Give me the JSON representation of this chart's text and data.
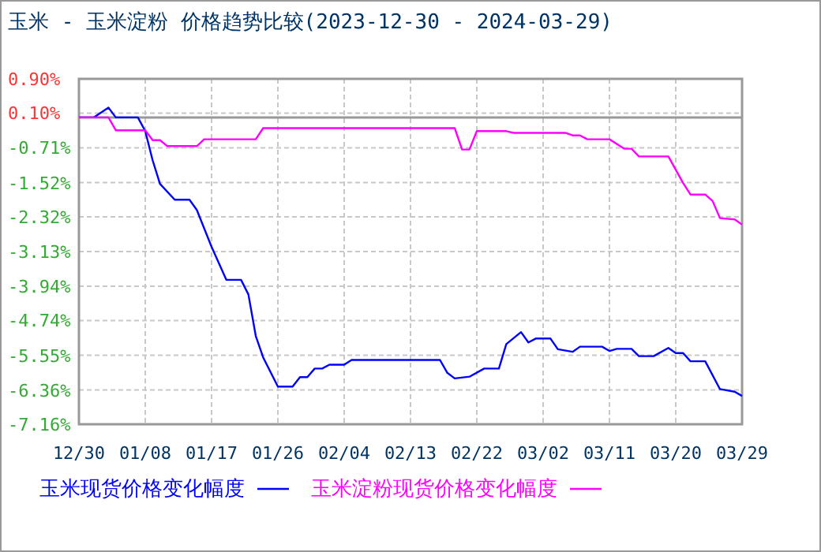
{
  "chart_data": {
    "type": "line",
    "title": "玉米 - 玉米淀粉 价格趋势比较(2023-12-30 - 2024-03-29)",
    "xlim": [
      "2023-12-30",
      "2024-03-29"
    ],
    "xticks": [
      {
        "value": "2023-12-30",
        "label": "12/30"
      },
      {
        "value": "2024-01-08",
        "label": "01/08"
      },
      {
        "value": "2024-01-17",
        "label": "01/17"
      },
      {
        "value": "2024-01-26",
        "label": "01/26"
      },
      {
        "value": "2024-02-04",
        "label": "02/04"
      },
      {
        "value": "2024-02-13",
        "label": "02/13"
      },
      {
        "value": "2024-02-22",
        "label": "02/22"
      },
      {
        "value": "2024-03-02",
        "label": "03/02"
      },
      {
        "value": "2024-03-11",
        "label": "03/11"
      },
      {
        "value": "2024-03-20",
        "label": "03/20"
      },
      {
        "value": "2024-03-29",
        "label": "03/29"
      }
    ],
    "ylim": [
      -7.16,
      0.9
    ],
    "yticks": [
      {
        "value": 0.9,
        "label": "0.90%"
      },
      {
        "value": 0.1,
        "label": "0.10%"
      },
      {
        "value": -0.71,
        "label": "-0.71%"
      },
      {
        "value": -1.52,
        "label": "-1.52%"
      },
      {
        "value": -2.32,
        "label": "-2.32%"
      },
      {
        "value": -3.13,
        "label": "-3.13%"
      },
      {
        "value": -3.94,
        "label": "-3.94%"
      },
      {
        "value": -4.74,
        "label": "-4.74%"
      },
      {
        "value": -5.55,
        "label": "-5.55%"
      },
      {
        "value": -6.36,
        "label": "-6.36%"
      },
      {
        "value": -7.16,
        "label": "-7.16%"
      }
    ],
    "grid": true,
    "legend": "bottom",
    "line_style": "solid",
    "marker": "none",
    "ref_lines": [
      {
        "axis": "y",
        "value": 0,
        "color": "#999999",
        "line_style": "solid"
      }
    ],
    "series": [
      {
        "name": "玉米现货价格变化幅度",
        "color": "#0000ff",
        "x": [
          "2023-12-30",
          "2024-01-01",
          "2024-01-03",
          "2024-01-04",
          "2024-01-07",
          "2024-01-08",
          "2024-01-09",
          "2024-01-10",
          "2024-01-12",
          "2024-01-14",
          "2024-01-15",
          "2024-01-17",
          "2024-01-19",
          "2024-01-21",
          "2024-01-22",
          "2024-01-23",
          "2024-01-24",
          "2024-01-26",
          "2024-01-28",
          "2024-01-29",
          "2024-01-30",
          "2024-01-31",
          "2024-02-01",
          "2024-02-02",
          "2024-02-04",
          "2024-02-05",
          "2024-02-17",
          "2024-02-18",
          "2024-02-19",
          "2024-02-21",
          "2024-02-23",
          "2024-02-25",
          "2024-02-26",
          "2024-02-28",
          "2024-02-29",
          "2024-03-01",
          "2024-03-03",
          "2024-03-04",
          "2024-03-06",
          "2024-03-07",
          "2024-03-10",
          "2024-03-11",
          "2024-03-12",
          "2024-03-14",
          "2024-03-15",
          "2024-03-17",
          "2024-03-19",
          "2024-03-20",
          "2024-03-21",
          "2024-03-22",
          "2024-03-24",
          "2024-03-26",
          "2024-03-28",
          "2024-03-29"
        ],
        "values": [
          0,
          0,
          0.23,
          0,
          0,
          -0.32,
          -1.0,
          -1.55,
          -1.92,
          -1.92,
          -2.16,
          -3.02,
          -3.79,
          -3.79,
          -4.13,
          -5.1,
          -5.6,
          -6.28,
          -6.28,
          -6.06,
          -6.06,
          -5.86,
          -5.86,
          -5.77,
          -5.77,
          -5.66,
          -5.66,
          -5.96,
          -6.09,
          -6.05,
          -5.86,
          -5.86,
          -5.29,
          -5.01,
          -5.25,
          -5.16,
          -5.16,
          -5.41,
          -5.47,
          -5.35,
          -5.35,
          -5.45,
          -5.4,
          -5.4,
          -5.57,
          -5.57,
          -5.38,
          -5.5,
          -5.5,
          -5.69,
          -5.69,
          -6.34,
          -6.4,
          -6.5
        ]
      },
      {
        "name": "玉米淀粉现货价格变化幅度",
        "color": "#ff00ff",
        "x": [
          "2023-12-30",
          "2024-01-03",
          "2024-01-04",
          "2024-01-08",
          "2024-01-09",
          "2024-01-10",
          "2024-01-11",
          "2024-01-15",
          "2024-01-16",
          "2024-01-23",
          "2024-01-24",
          "2024-02-19",
          "2024-02-20",
          "2024-02-21",
          "2024-02-22",
          "2024-02-26",
          "2024-02-27",
          "2024-03-05",
          "2024-03-06",
          "2024-03-07",
          "2024-03-08",
          "2024-03-11",
          "2024-03-13",
          "2024-03-14",
          "2024-03-15",
          "2024-03-19",
          "2024-03-21",
          "2024-03-22",
          "2024-03-24",
          "2024-03-25",
          "2024-03-26",
          "2024-03-28",
          "2024-03-29"
        ],
        "values": [
          0,
          0,
          -0.3,
          -0.3,
          -0.53,
          -0.53,
          -0.67,
          -0.67,
          -0.51,
          -0.51,
          -0.25,
          -0.25,
          -0.75,
          -0.75,
          -0.32,
          -0.32,
          -0.36,
          -0.36,
          -0.42,
          -0.42,
          -0.51,
          -0.51,
          -0.73,
          -0.73,
          -0.91,
          -0.91,
          -1.53,
          -1.8,
          -1.8,
          -1.95,
          -2.35,
          -2.38,
          -2.5
        ]
      }
    ]
  }
}
